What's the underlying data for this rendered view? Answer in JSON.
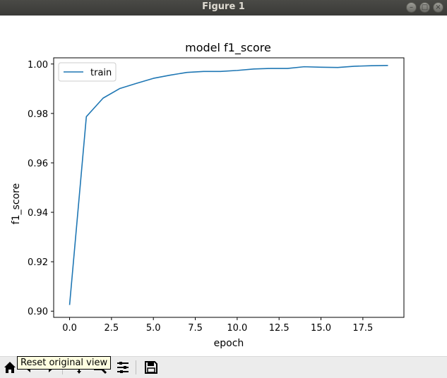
{
  "window": {
    "title": "Figure 1"
  },
  "toolbar": {
    "tooltip": "Reset original view",
    "icons": [
      "home-icon",
      "back-icon",
      "forward-icon",
      "pan-icon",
      "zoom-icon",
      "configure-subplots-icon",
      "save-icon"
    ]
  },
  "colors": {
    "series": "#1f77b4",
    "titlebar": "#3c3b37"
  },
  "chart_data": {
    "type": "line",
    "title": "model f1_score",
    "xlabel": "epoch",
    "ylabel": "f1_score",
    "xlim": [
      -0.95,
      19.95
    ],
    "ylim": [
      0.8975,
      1.0025
    ],
    "xticks": [
      0.0,
      2.5,
      5.0,
      7.5,
      10.0,
      12.5,
      15.0,
      17.5
    ],
    "yticks": [
      0.9,
      0.92,
      0.94,
      0.96,
      0.98,
      1.0
    ],
    "xtick_labels": [
      "0.0",
      "2.5",
      "5.0",
      "7.5",
      "10.0",
      "12.5",
      "15.0",
      "17.5"
    ],
    "ytick_labels": [
      "0.90",
      "0.92",
      "0.94",
      "0.96",
      "0.98",
      "1.00"
    ],
    "legend_position": "top-left",
    "grid": false,
    "x": [
      0,
      1,
      2,
      3,
      4,
      5,
      6,
      7,
      8,
      9,
      10,
      11,
      12,
      13,
      14,
      15,
      16,
      17,
      18,
      19
    ],
    "series": [
      {
        "name": "train",
        "values": [
          0.9025,
          0.9787,
          0.9862,
          0.9901,
          0.9922,
          0.9942,
          0.9955,
          0.9966,
          0.997,
          0.997,
          0.9974,
          0.998,
          0.9982,
          0.9982,
          0.9989,
          0.9987,
          0.9986,
          0.9991,
          0.9993,
          0.9994
        ]
      }
    ]
  }
}
